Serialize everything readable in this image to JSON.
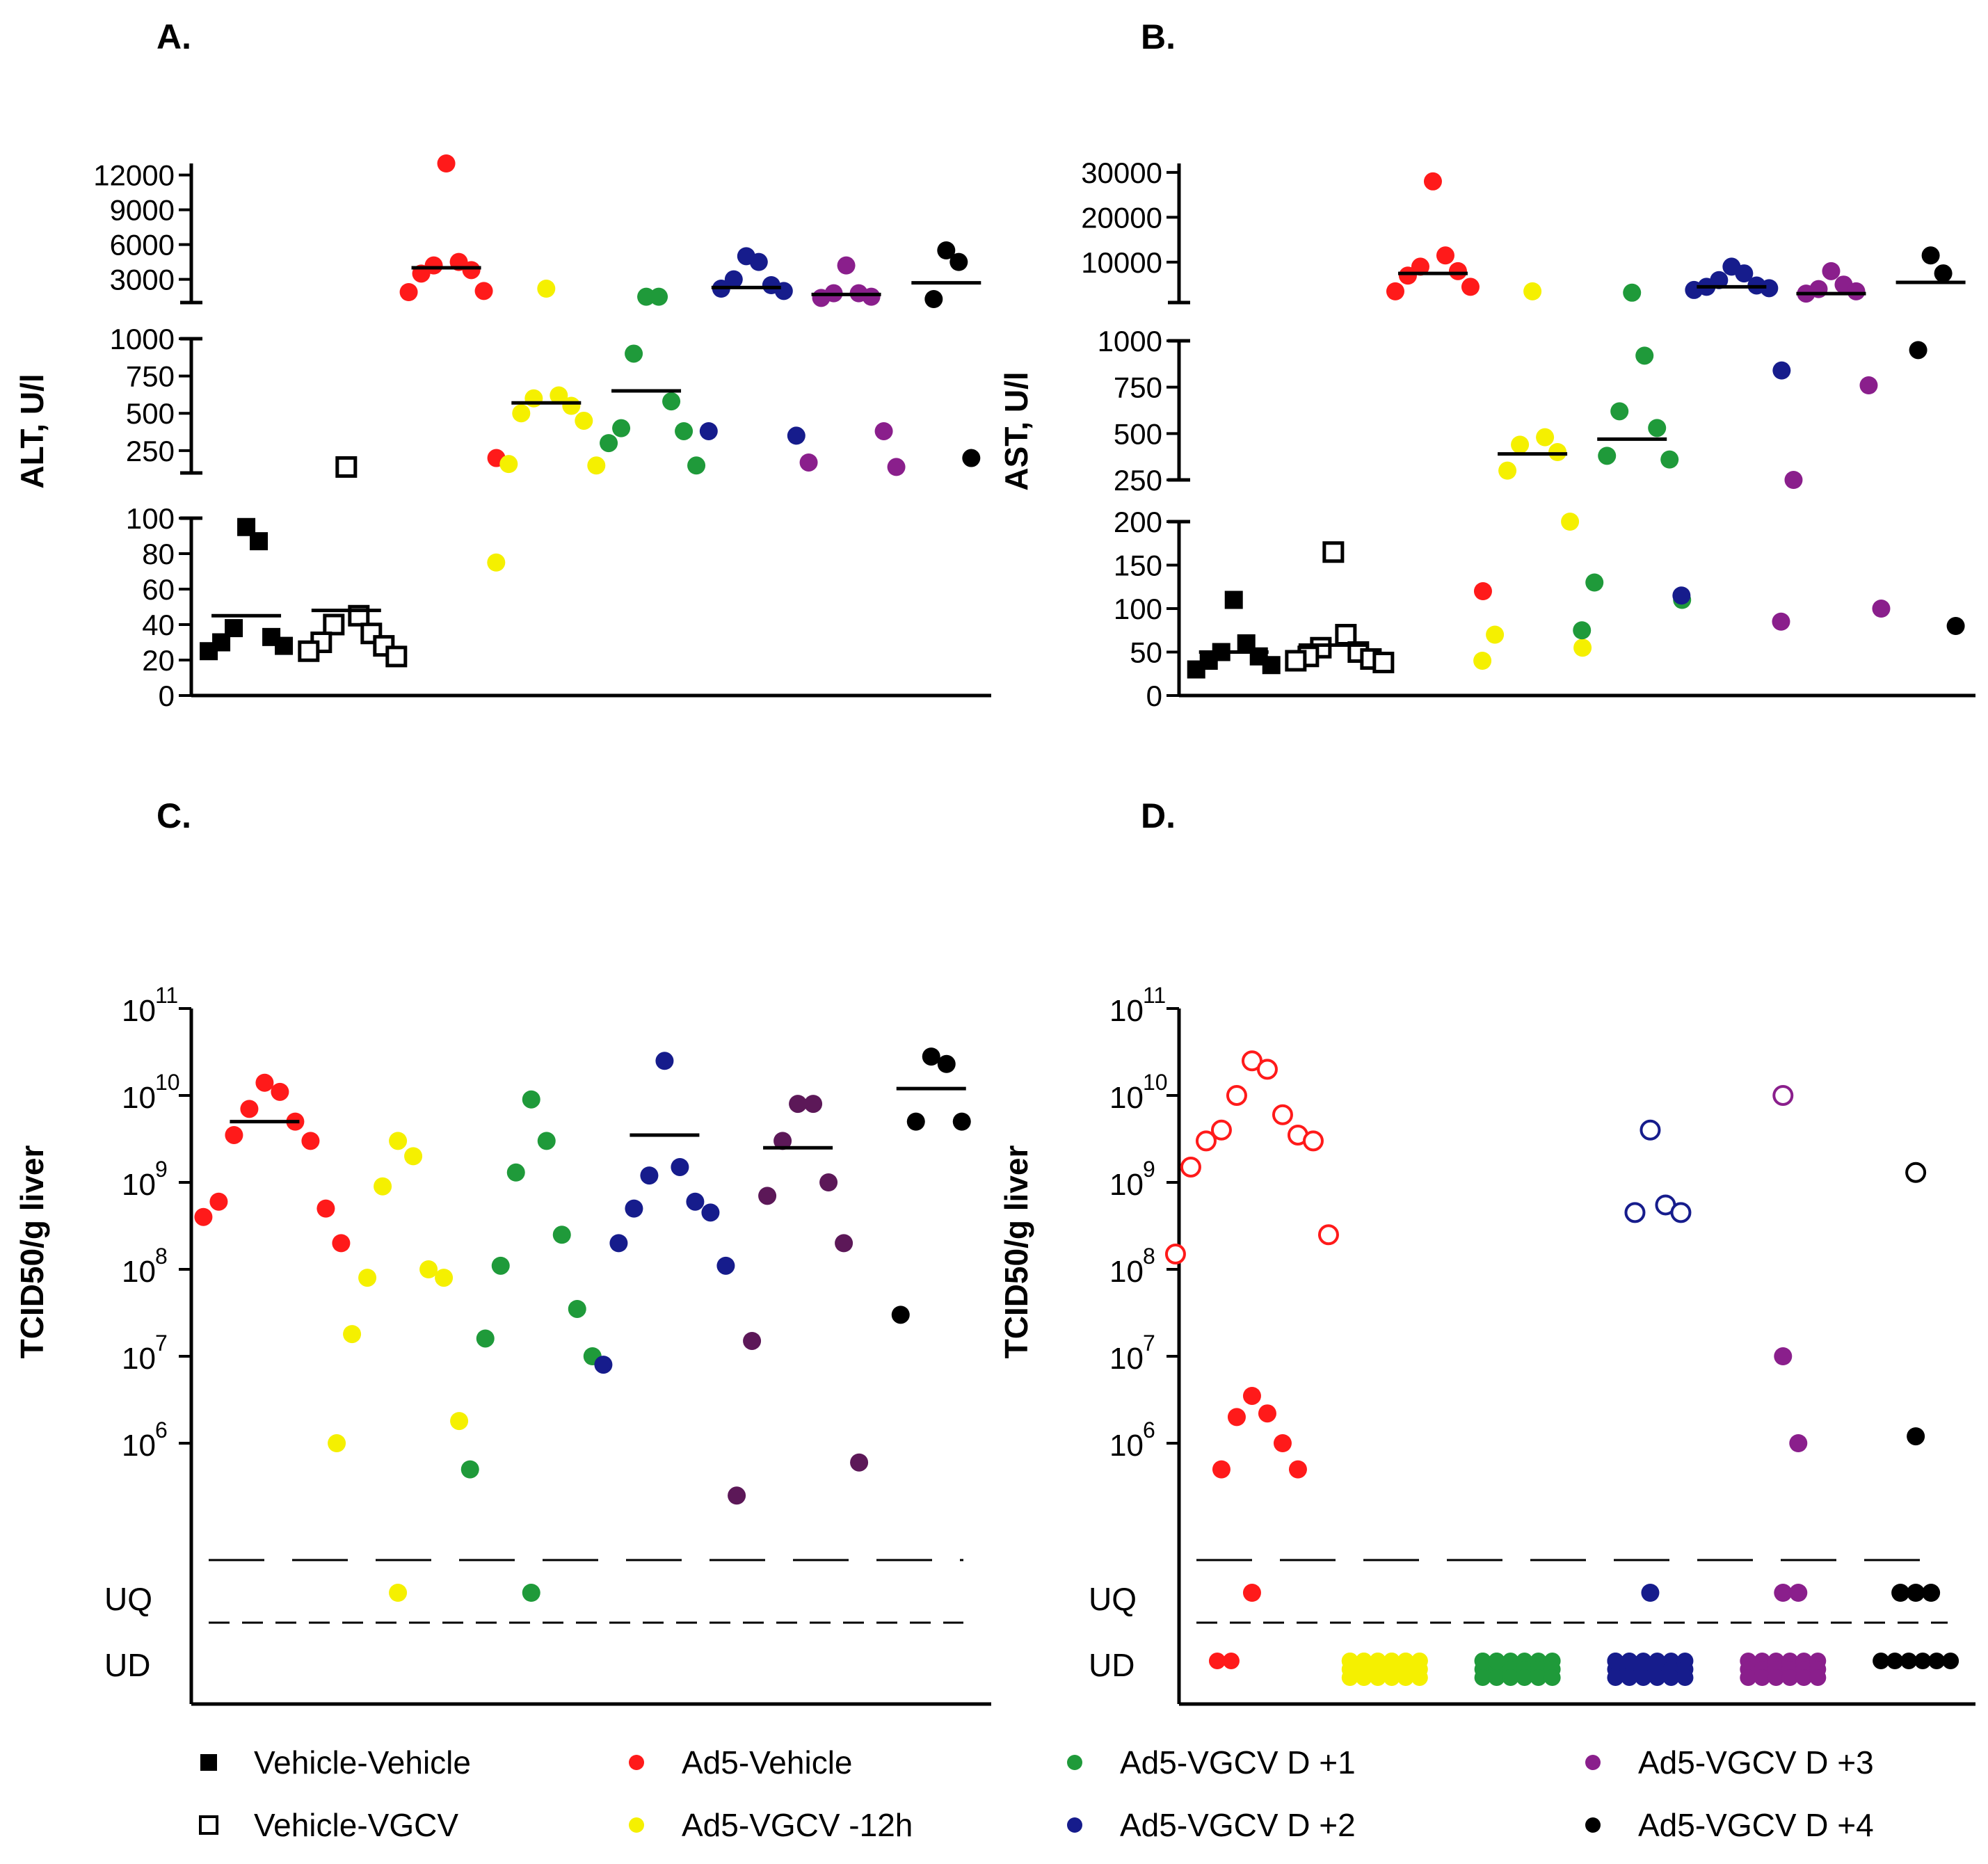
{
  "colors": {
    "vv": "#000000",
    "vg": "#000000",
    "ad5_vehicle": "#ff1a1a",
    "vgcv_m12": "#f5f000",
    "d1": "#1f9a3a",
    "d2": "#161c8c",
    "d3": "#8a1f8c",
    "d3_c": "#5c1858",
    "d4": "#000000",
    "axis": "#000000",
    "ref": "#888888"
  },
  "legend": [
    {
      "key": "vv",
      "label": "Vehicle-Vehicle",
      "marker": "square-filled",
      "color": "#000000"
    },
    {
      "key": "ad5_vehicle",
      "label": "Ad5-Vehicle",
      "marker": "circle",
      "color": "#ff1a1a"
    },
    {
      "key": "d1",
      "label": "Ad5-VGCV D +1",
      "marker": "circle",
      "color": "#1f9a3a"
    },
    {
      "key": "d3",
      "label": "Ad5-VGCV D +3",
      "marker": "circle",
      "color": "#8a1f8c"
    },
    {
      "key": "vg",
      "label": "Vehicle-VGCV",
      "marker": "square-open",
      "color": "#000000"
    },
    {
      "key": "vgcv_m12",
      "label": "Ad5-VGCV -12h",
      "marker": "circle",
      "color": "#f5f000"
    },
    {
      "key": "d2",
      "label": "Ad5-VGCV D +2",
      "marker": "circle",
      "color": "#161c8c"
    },
    {
      "key": "d4",
      "label": "Ad5-VGCV D +4",
      "marker": "circle",
      "color": "#000000"
    }
  ],
  "chart_data": [
    {
      "panel": "A.",
      "type": "scatter",
      "ylabel": "ALT, U/l",
      "scale": "broken-linear",
      "segments": [
        {
          "range": [
            0,
            100
          ],
          "ticks": [
            0,
            20,
            40,
            60,
            80,
            100
          ]
        },
        {
          "range": [
            100,
            1000
          ],
          "ticks": [
            250,
            500,
            750,
            1000
          ]
        },
        {
          "range": [
            1000,
            13000
          ],
          "ticks": [
            3000,
            6000,
            9000,
            12000
          ]
        }
      ],
      "groups": [
        {
          "key": "vv",
          "values": [
            95,
            87,
            38,
            33,
            30,
            28,
            25
          ],
          "median": 45
        },
        {
          "key": "vg",
          "values": [
            140,
            45,
            40,
            35,
            30,
            28,
            25,
            22
          ],
          "median": 48
        },
        {
          "key": "ad5_vehicle",
          "values": [
            13500,
            4500,
            4200,
            3800,
            3500,
            2000,
            1900,
            200
          ],
          "median": 4000
        },
        {
          "key": "vgcv_m12",
          "values": [
            2200,
            620,
            600,
            550,
            500,
            450,
            160,
            150,
            75
          ],
          "median": 570
        },
        {
          "key": "d1",
          "values": [
            1500,
            1500,
            900,
            580,
            400,
            380,
            300,
            150
          ],
          "median": 650
        },
        {
          "key": "d2",
          "values": [
            5000,
            4500,
            3000,
            2500,
            2200,
            2000,
            380,
            350
          ],
          "median": 2300
        },
        {
          "key": "d3",
          "values": [
            4200,
            1800,
            1800,
            1500,
            1400,
            380,
            170,
            140
          ],
          "median": 1700
        },
        {
          "key": "d4",
          "values": [
            5500,
            4500,
            1300,
            200
          ],
          "median": 2700
        }
      ]
    },
    {
      "panel": "B.",
      "type": "scatter",
      "ylabel": "AST, U/l",
      "scale": "broken-linear",
      "segments": [
        {
          "range": [
            0,
            200
          ],
          "ticks": [
            0,
            50,
            100,
            150,
            200
          ]
        },
        {
          "range": [
            250,
            1000
          ],
          "ticks": [
            250,
            500,
            750,
            1000
          ]
        },
        {
          "range": [
            1000,
            32000
          ],
          "ticks": [
            10000,
            20000,
            30000
          ]
        }
      ],
      "groups": [
        {
          "key": "vv",
          "values": [
            110,
            60,
            50,
            45,
            40,
            35,
            30
          ],
          "median": 50
        },
        {
          "key": "vg",
          "values": [
            165,
            70,
            55,
            50,
            45,
            42,
            40,
            38
          ],
          "median": 58
        },
        {
          "key": "ad5_vehicle",
          "values": [
            28000,
            11500,
            9000,
            8000,
            7000,
            4500,
            3500,
            120
          ],
          "median": 7500
        },
        {
          "key": "vgcv_m12",
          "values": [
            3500,
            480,
            440,
            400,
            300,
            200,
            70,
            55,
            40
          ],
          "median": 390
        },
        {
          "key": "d1",
          "values": [
            3200,
            920,
            620,
            530,
            380,
            360,
            130,
            110,
            75
          ],
          "median": 470
        },
        {
          "key": "d2",
          "values": [
            9000,
            7500,
            6000,
            4800,
            4500,
            4200,
            3800,
            840,
            115
          ],
          "median": 4500
        },
        {
          "key": "d3",
          "values": [
            8000,
            5000,
            4000,
            3500,
            3000,
            760,
            240,
            100,
            85
          ],
          "median": 3000
        },
        {
          "key": "d4",
          "values": [
            11500,
            7500,
            950,
            80
          ],
          "median": 5500
        }
      ]
    },
    {
      "panel": "C.",
      "type": "scatter",
      "ylabel": "TCID50/g liver",
      "scale": "log10",
      "ylim": [
        100000,
        100000000000
      ],
      "tick_exponents": [
        6,
        7,
        8,
        9,
        10,
        11
      ],
      "reference_labels": [
        "UQ",
        "UD"
      ],
      "groups": [
        {
          "key": "ad5_vehicle",
          "values": [
            14000000000.0,
            11000000000.0,
            7000000000.0,
            5000000000.0,
            3500000000.0,
            3000000000.0,
            600000000.0,
            500000000.0,
            400000000.0,
            200000000.0
          ],
          "median": 5000000000.0,
          "uq_count": 0,
          "ud_count": 0
        },
        {
          "key": "vgcv_m12",
          "values": [
            3000000000.0,
            2000000000.0,
            900000000.0,
            100000000.0,
            80000000.0,
            80000000.0,
            18000000.0,
            1800000.0,
            1000000.0
          ],
          "median": null,
          "uq_count": 1,
          "ud_count": 0
        },
        {
          "key": "d1",
          "values": [
            9000000000.0,
            3000000000.0,
            1300000000.0,
            250000000.0,
            110000000.0,
            35000000.0,
            16000000.0,
            10000000.0,
            500000.0
          ],
          "median": null,
          "uq_count": 1,
          "ud_count": 0
        },
        {
          "key": "d2",
          "values": [
            25000000000.0,
            1500000000.0,
            1200000000.0,
            600000000.0,
            500000000.0,
            450000000.0,
            200000000.0,
            110000000.0,
            8000000.0
          ],
          "median": 3500000000.0,
          "uq_count": 0,
          "ud_count": 0
        },
        {
          "key": "d3_c",
          "values": [
            8000000000.0,
            8000000000.0,
            3000000000.0,
            1000000000.0,
            700000000.0,
            200000000.0,
            15000000.0,
            600000.0,
            250000.0
          ],
          "median": 2500000000.0,
          "uq_count": 0,
          "ud_count": 0
        },
        {
          "key": "d4",
          "values": [
            28000000000.0,
            23000000000.0,
            5000000000.0,
            5000000000.0,
            30000000.0
          ],
          "median": 12000000000.0,
          "uq_count": 0,
          "ud_count": 0
        }
      ]
    },
    {
      "panel": "D.",
      "type": "scatter",
      "ylabel": "TCID50/g liver",
      "scale": "log10",
      "ylim": [
        100000,
        100000000000
      ],
      "tick_exponents": [
        6,
        7,
        8,
        9,
        10,
        11
      ],
      "reference_labels": [
        "UQ",
        "UD"
      ],
      "groups": [
        {
          "key": "ad5_vehicle",
          "open": [
            25000000000.0,
            20000000000.0,
            10000000000.0,
            6000000000.0,
            4000000000.0,
            3500000000.0,
            3000000000.0,
            3000000000.0,
            1500000000.0,
            250000000.0,
            150000000.0
          ],
          "filled": [
            3500000.0,
            2200000.0,
            2000000.0,
            1000000.0,
            500000.0,
            500000.0
          ],
          "uq_count": 1,
          "ud_count": 2
        },
        {
          "key": "vgcv_m12",
          "open": [],
          "filled": [],
          "uq_count": 0,
          "ud_count": 24
        },
        {
          "key": "d1",
          "open": [],
          "filled": [],
          "uq_count": 0,
          "ud_count": 20
        },
        {
          "key": "d2",
          "open": [
            4000000000.0,
            550000000.0,
            450000000.0,
            450000000.0
          ],
          "filled": [],
          "uq_count": 1,
          "ud_count": 20
        },
        {
          "key": "d3",
          "open": [
            10000000000.0
          ],
          "filled": [
            10000000.0,
            1000000.0
          ],
          "uq_count": 2,
          "ud_count": 18
        },
        {
          "key": "d4",
          "open": [
            1300000000.0
          ],
          "filled": [
            1200000.0
          ],
          "uq_count": 3,
          "ud_count": 6
        }
      ]
    }
  ]
}
